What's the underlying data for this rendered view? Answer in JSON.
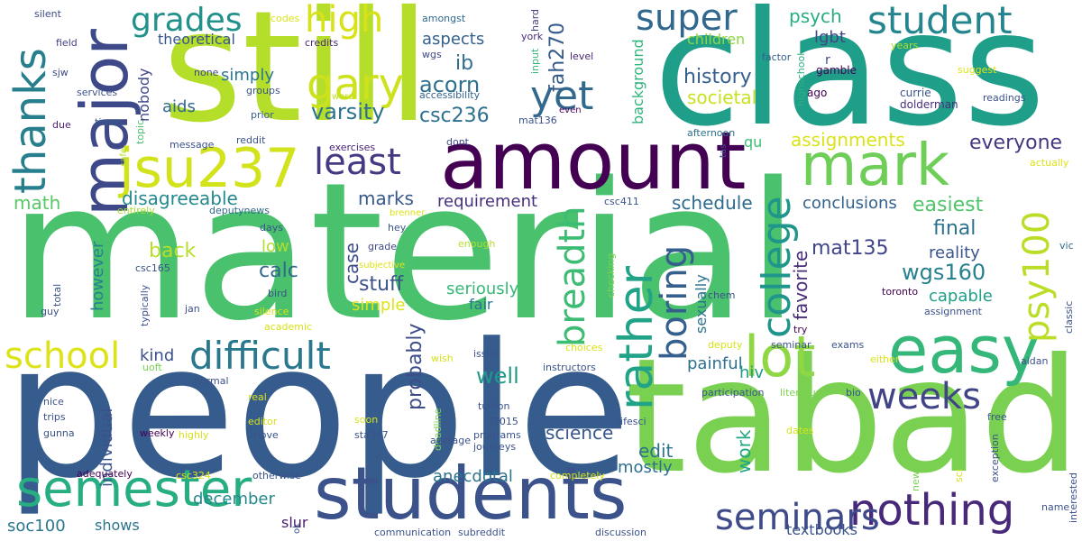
{
  "words": [
    {
      "id": "material",
      "text": "material",
      "color": "#4ac16d"
    },
    {
      "id": "people",
      "text": "people",
      "color": "#365c8d"
    },
    {
      "id": "still",
      "text": "still",
      "color": "#b5de2b"
    },
    {
      "id": "class",
      "text": "class",
      "color": "#1f9e89"
    },
    {
      "id": "tabad",
      "text": "tabad",
      "color": "#7ad151"
    },
    {
      "id": "amount",
      "text": "amount",
      "color": "#440154"
    },
    {
      "id": "students",
      "text": "students",
      "color": "#3b528b"
    },
    {
      "id": "semester",
      "text": "semester",
      "color": "#26ad81"
    },
    {
      "id": "major",
      "text": "major",
      "color": "#3e4989"
    },
    {
      "id": "easy",
      "text": "easy",
      "color": "#35b779"
    },
    {
      "id": "mark",
      "text": "mark",
      "color": "#6ece58"
    },
    {
      "id": "lot",
      "text": "lot",
      "color": "#8fd744"
    },
    {
      "id": "jsu237",
      "text": "jsu237",
      "color": "#d2e21b"
    },
    {
      "id": "difficult",
      "text": "difficult",
      "color": "#2a788e"
    },
    {
      "id": "nothing",
      "text": "nothing",
      "color": "#482878"
    },
    {
      "id": "seminars",
      "text": "seminars",
      "color": "#3e4a89"
    },
    {
      "id": "weeks",
      "text": "weeks",
      "color": "#414487"
    },
    {
      "id": "student",
      "text": "student",
      "color": "#25858e"
    },
    {
      "id": "school",
      "text": "school",
      "color": "#dde318"
    },
    {
      "id": "super",
      "text": "super",
      "color": "#31688e"
    },
    {
      "id": "grades",
      "text": "grades",
      "color": "#21918c"
    },
    {
      "id": "high",
      "text": "high",
      "color": "#d8e219"
    },
    {
      "id": "gary",
      "text": "gary",
      "color": "#cde11d"
    },
    {
      "id": "yet",
      "text": "yet",
      "color": "#31688e"
    },
    {
      "id": "least",
      "text": "least",
      "color": "#443a83"
    },
    {
      "id": "thanks",
      "text": "thanks",
      "color": "#277f8e"
    },
    {
      "id": "rather",
      "text": "rather",
      "color": "#20a386"
    },
    {
      "id": "breadth",
      "text": "breadth",
      "color": "#3dbc74"
    },
    {
      "id": "college",
      "text": "college",
      "color": "#1f958b"
    },
    {
      "id": "boring",
      "text": "boring",
      "color": "#355f8d"
    },
    {
      "id": "psy100",
      "text": "psy100",
      "color": "#bade28"
    },
    {
      "id": "everyone",
      "text": "everyone",
      "color": "#453781"
    },
    {
      "id": "history",
      "text": "history",
      "color": "#355e8d"
    },
    {
      "id": "societal",
      "text": "societal",
      "color": "#cae11f"
    },
    {
      "id": "varsity",
      "text": "varsity",
      "color": "#2c718e"
    },
    {
      "id": "csc236",
      "text": "csc236",
      "color": "#2d708e"
    },
    {
      "id": "acorn",
      "text": "acorn",
      "color": "#2e6f8e"
    },
    {
      "id": "ib",
      "text": "ib",
      "color": "#2f6c8e"
    },
    {
      "id": "aspects",
      "text": "aspects",
      "color": "#34618d"
    },
    {
      "id": "fah270",
      "text": "fah270",
      "color": "#375a8c"
    },
    {
      "id": "theoretical",
      "text": "theoretical",
      "color": "#39568c"
    },
    {
      "id": "psych",
      "text": "psych",
      "color": "#27ad81"
    },
    {
      "id": "children",
      "text": "children",
      "color": "#90d743"
    },
    {
      "id": "lgbt",
      "text": "lgbt",
      "color": "#404688"
    },
    {
      "id": "simply",
      "text": "simply",
      "color": "#2a768e"
    },
    {
      "id": "aids",
      "text": "aids",
      "color": "#31688e"
    },
    {
      "id": "nobody",
      "text": "nobody",
      "color": "#3f4889"
    },
    {
      "id": "disagreeable",
      "text": "disagreeable",
      "color": "#23898e"
    },
    {
      "id": "marks",
      "text": "marks",
      "color": "#38588c"
    },
    {
      "id": "requirement",
      "text": "requirement",
      "color": "#472f7d"
    },
    {
      "id": "schedule",
      "text": "schedule",
      "color": "#2f6b8e"
    },
    {
      "id": "assignments",
      "text": "assignments",
      "color": "#dae319"
    },
    {
      "id": "conclusions",
      "text": "conclusions",
      "color": "#33628d"
    },
    {
      "id": "easiest",
      "text": "easiest",
      "color": "#50c46a"
    },
    {
      "id": "final",
      "text": "final",
      "color": "#2c718e"
    },
    {
      "id": "mat135",
      "text": "mat135",
      "color": "#404588"
    },
    {
      "id": "reality",
      "text": "reality",
      "color": "#3a548c"
    },
    {
      "id": "wgs160",
      "text": "wgs160",
      "color": "#27808e"
    },
    {
      "id": "capable",
      "text": "capable",
      "color": "#1fa088"
    },
    {
      "id": "favorite",
      "text": "favorite",
      "color": "#472c7a"
    },
    {
      "id": "math",
      "text": "math",
      "color": "#58c765"
    },
    {
      "id": "back",
      "text": "back",
      "color": "#b8de29"
    },
    {
      "id": "low",
      "text": "low",
      "color": "#b0dd2f"
    },
    {
      "id": "calc",
      "text": "calc",
      "color": "#31688e"
    },
    {
      "id": "case",
      "text": "case",
      "color": "#3e4c8a"
    },
    {
      "id": "stuff",
      "text": "stuff",
      "color": "#3b528b"
    },
    {
      "id": "seriously",
      "text": "seriously",
      "color": "#37b878"
    },
    {
      "id": "simple",
      "text": "simple",
      "color": "#dde318"
    },
    {
      "id": "fair",
      "text": "fair",
      "color": "#2a768e"
    },
    {
      "id": "kind",
      "text": "kind",
      "color": "#3c508b"
    },
    {
      "id": "however",
      "text": "however",
      "color": "#27808e"
    },
    {
      "id": "well",
      "text": "well",
      "color": "#1f9a8a"
    },
    {
      "id": "probably",
      "text": "probably",
      "color": "#3d4d8a"
    },
    {
      "id": "painful",
      "text": "painful",
      "color": "#2d708e"
    },
    {
      "id": "work",
      "text": "work",
      "color": "#21a585"
    },
    {
      "id": "hiv",
      "text": "hiv",
      "color": "#1f9a8a"
    },
    {
      "id": "edit",
      "text": "edit",
      "color": "#2c728e"
    },
    {
      "id": "mostly",
      "text": "mostly",
      "color": "#2d708e"
    },
    {
      "id": "science",
      "text": "science",
      "color": "#39568c"
    },
    {
      "id": "anecdotal",
      "text": "anecdotal",
      "color": "#2b748e"
    },
    {
      "id": "individual",
      "text": "individual",
      "color": "#3b528b"
    },
    {
      "id": "december",
      "text": "december",
      "color": "#23898e"
    },
    {
      "id": "soc100",
      "text": "soc100",
      "color": "#2a778e"
    },
    {
      "id": "shows",
      "text": "shows",
      "color": "#2b758e"
    },
    {
      "id": "slur",
      "text": "slur",
      "color": "#481d6f"
    },
    {
      "id": "sexually",
      "text": "sexually",
      "color": "#2c728e"
    },
    {
      "id": "textbooks",
      "text": "textbooks",
      "color": "#3b528b"
    },
    {
      "id": "silent",
      "text": "silent",
      "color": "#3e4a89"
    },
    {
      "id": "field",
      "text": "field",
      "color": "#423f85"
    },
    {
      "id": "sjw",
      "text": "sjw",
      "color": "#3e4a89"
    },
    {
      "id": "services",
      "text": "services",
      "color": "#3b528b"
    },
    {
      "id": "due",
      "text": "due",
      "color": "#482173"
    },
    {
      "id": "times",
      "text": "times",
      "color": "#365d8d"
    },
    {
      "id": "topic",
      "text": "topic",
      "color": "#4ac16d"
    },
    {
      "id": "none",
      "text": "none",
      "color": "#3e4a89"
    },
    {
      "id": "groups",
      "text": "groups",
      "color": "#3b528b"
    },
    {
      "id": "prior",
      "text": "prior",
      "color": "#365c8d"
    },
    {
      "id": "word",
      "text": "word",
      "color": "#c2df23"
    },
    {
      "id": "codes",
      "text": "codes",
      "color": "#dde318"
    },
    {
      "id": "credits",
      "text": "credits",
      "color": "#482878"
    },
    {
      "id": "amongst",
      "text": "amongst",
      "color": "#31688e"
    },
    {
      "id": "accessibility",
      "text": "accessibility",
      "color": "#33638d"
    },
    {
      "id": "wgs",
      "text": "wgs",
      "color": "#3f4788"
    },
    {
      "id": "york",
      "text": "york",
      "color": "#472d7b"
    },
    {
      "id": "input",
      "text": "input",
      "color": "#38b977"
    },
    {
      "id": "hard",
      "text": "hard",
      "color": "#423f85"
    },
    {
      "id": "level",
      "text": "level",
      "color": "#482475"
    },
    {
      "id": "mat136",
      "text": "mat136",
      "color": "#3b528b"
    },
    {
      "id": "even",
      "text": "even",
      "color": "#440154"
    },
    {
      "id": "background",
      "text": "background",
      "color": "#2fb47c"
    },
    {
      "id": "afternoon",
      "text": "afternoon",
      "color": "#2d708e"
    },
    {
      "id": "tas",
      "text": "tas",
      "color": "#3b528b"
    },
    {
      "id": "factor",
      "text": "factor",
      "color": "#34618d"
    },
    {
      "id": "highschool",
      "text": "highschool",
      "color": "#2ab07f"
    },
    {
      "id": "gamble",
      "text": "gamble",
      "color": "#440154"
    },
    {
      "id": "ago",
      "text": "ago",
      "color": "#440154"
    },
    {
      "id": "currie",
      "text": "currie",
      "color": "#3b528b"
    },
    {
      "id": "dolderman",
      "text": "dolderman",
      "color": "#472d7b"
    },
    {
      "id": "years",
      "text": "years",
      "color": "#b0dd2f"
    },
    {
      "id": "suggest",
      "text": "suggest",
      "color": "#dde318"
    },
    {
      "id": "readings",
      "text": "readings",
      "color": "#3b528b"
    },
    {
      "id": "r",
      "text": "r",
      "color": "#3e4a89"
    },
    {
      "id": "actually",
      "text": "actually",
      "color": "#dde318"
    },
    {
      "id": "message",
      "text": "message",
      "color": "#3b528b"
    },
    {
      "id": "reddit",
      "text": "reddit",
      "color": "#3b528b"
    },
    {
      "id": "exercises",
      "text": "exercises",
      "color": "#482475"
    },
    {
      "id": "dont",
      "text": "dont",
      "color": "#3e4a89"
    },
    {
      "id": "qu",
      "text": "qu",
      "color": "#3dbc74"
    },
    {
      "id": "safe",
      "text": "safe",
      "color": "#b5de2b"
    },
    {
      "id": "entirely",
      "text": "entirely",
      "color": "#a8db34"
    },
    {
      "id": "deputynews",
      "text": "deputynews",
      "color": "#31688e"
    },
    {
      "id": "days",
      "text": "days",
      "color": "#3b528b"
    },
    {
      "id": "hey",
      "text": "hey",
      "color": "#3b528b"
    },
    {
      "id": "brenner",
      "text": "brenner",
      "color": "#dde318"
    },
    {
      "id": "csc411",
      "text": "csc411",
      "color": "#3b528b"
    },
    {
      "id": "grade",
      "text": "grade",
      "color": "#3e4a89"
    },
    {
      "id": "subjective",
      "text": "subjective",
      "color": "#dde318"
    },
    {
      "id": "enough",
      "text": "enough",
      "color": "#b5de2b"
    },
    {
      "id": "checking",
      "text": "checking",
      "color": "#7ad151"
    },
    {
      "id": "csc165",
      "text": "csc165",
      "color": "#3b528b"
    },
    {
      "id": "total",
      "text": "total",
      "color": "#3b528b"
    },
    {
      "id": "guy",
      "text": "guy",
      "color": "#3b528b"
    },
    {
      "id": "typically",
      "text": "typically",
      "color": "#3b528b"
    },
    {
      "id": "bird",
      "text": "bird",
      "color": "#3b528b"
    },
    {
      "id": "jan",
      "text": "jan",
      "color": "#3b528b"
    },
    {
      "id": "silence",
      "text": "silence",
      "color": "#d8e219"
    },
    {
      "id": "academic",
      "text": "academic",
      "color": "#d8e219"
    },
    {
      "id": "chem",
      "text": "chem",
      "color": "#3b528b"
    },
    {
      "id": "toronto",
      "text": "toronto",
      "color": "#440154"
    },
    {
      "id": "vic",
      "text": "vic",
      "color": "#31688e"
    },
    {
      "id": "classic",
      "text": "classic",
      "color": "#3b528b"
    },
    {
      "id": "assignment",
      "text": "assignment",
      "color": "#3b528b"
    },
    {
      "id": "try",
      "text": "try",
      "color": "#440154"
    },
    {
      "id": "seminar",
      "text": "seminar",
      "color": "#3b528b"
    },
    {
      "id": "exams",
      "text": "exams",
      "color": "#3b528b"
    },
    {
      "id": "either",
      "text": "either",
      "color": "#d8e219"
    },
    {
      "id": "aidan",
      "text": "aidan",
      "color": "#3b528b"
    },
    {
      "id": "choices",
      "text": "choices",
      "color": "#d8e219"
    },
    {
      "id": "issue",
      "text": "issue",
      "color": "#3b528b"
    },
    {
      "id": "deputy",
      "text": "deputy",
      "color": "#d8e219"
    },
    {
      "id": "wish",
      "text": "wish",
      "color": "#d8e219"
    },
    {
      "id": "instructors",
      "text": "instructors",
      "color": "#3b528b"
    },
    {
      "id": "uoft",
      "text": "uoft",
      "color": "#7ad151"
    },
    {
      "id": "normal",
      "text": "normal",
      "color": "#3b528b"
    },
    {
      "id": "participation",
      "text": "participation",
      "color": "#3b528b"
    },
    {
      "id": "literature",
      "text": "literature",
      "color": "#7ad151"
    },
    {
      "id": "bio",
      "text": "bio",
      "color": "#3b528b"
    },
    {
      "id": "nice",
      "text": "nice",
      "color": "#3b528b"
    },
    {
      "id": "trips",
      "text": "trips",
      "color": "#3b528b"
    },
    {
      "id": "gunna",
      "text": "gunna",
      "color": "#3b528b"
    },
    {
      "id": "real",
      "text": "real",
      "color": "#d8e219"
    },
    {
      "id": "editor",
      "text": "editor",
      "color": "#d8e219"
    },
    {
      "id": "deadline",
      "text": "deadline",
      "color": "#7ad151"
    },
    {
      "id": "tuition",
      "text": "tuition",
      "color": "#3b528b"
    },
    {
      "id": "soon",
      "text": "soon",
      "color": "#d8e219"
    },
    {
      "id": "f2015",
      "text": "f2015",
      "color": "#3b528b"
    },
    {
      "id": "lifesci",
      "text": "lifesci",
      "color": "#3b528b"
    },
    {
      "id": "free",
      "text": "free",
      "color": "#3b528b"
    },
    {
      "id": "weekly",
      "text": "weekly",
      "color": "#440154"
    },
    {
      "id": "highly",
      "text": "highly",
      "color": "#d8e219"
    },
    {
      "id": "move",
      "text": "move",
      "color": "#3b528b"
    },
    {
      "id": "sta347",
      "text": "sta347",
      "color": "#3b528b"
    },
    {
      "id": "average",
      "text": "average",
      "color": "#3b528b"
    },
    {
      "id": "programs",
      "text": "programs",
      "color": "#3b528b"
    },
    {
      "id": "journeys",
      "text": "journeys",
      "color": "#3b528b"
    },
    {
      "id": "dates",
      "text": "dates",
      "color": "#d8e219"
    },
    {
      "id": "exception",
      "text": "exception",
      "color": "#3b528b"
    },
    {
      "id": "sci",
      "text": "sci",
      "color": "#d8e219"
    },
    {
      "id": "news",
      "text": "news",
      "color": "#7ad151"
    },
    {
      "id": "interested",
      "text": "interested",
      "color": "#3b528b"
    },
    {
      "id": "name",
      "text": "name",
      "color": "#3b528b"
    },
    {
      "id": "adequately",
      "text": "adequately",
      "color": "#440154"
    },
    {
      "id": "csc324",
      "text": "csc324",
      "color": "#d8e219"
    },
    {
      "id": "otherwise",
      "text": "otherwise",
      "color": "#3b528b"
    },
    {
      "id": "completely",
      "text": "completely",
      "color": "#d8e219"
    },
    {
      "id": "ok",
      "text": "ok",
      "color": "#3b528b"
    },
    {
      "id": "communication",
      "text": "communication",
      "color": "#3b528b"
    },
    {
      "id": "subreddit",
      "text": "subreddit",
      "color": "#3b528b"
    },
    {
      "id": "discussion",
      "text": "discussion",
      "color": "#3b528b"
    }
  ]
}
